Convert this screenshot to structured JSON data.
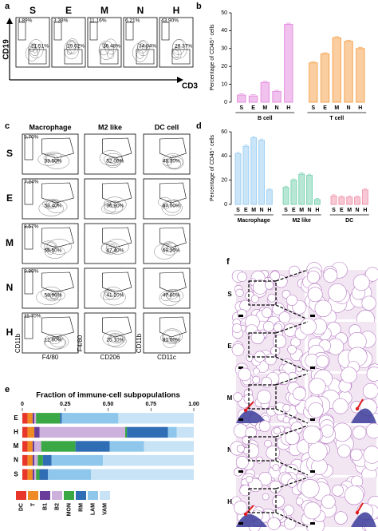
{
  "panel_labels": [
    "a",
    "b",
    "c",
    "d",
    "e",
    "f"
  ],
  "panel_a": {
    "samples": [
      "S",
      "E",
      "M",
      "N",
      "H"
    ],
    "gate_top": [
      "4.89%",
      "3.38%",
      "11.16%",
      "6.21%",
      "43.90%"
    ],
    "gate_bottom": [
      "21.51%",
      "29.02%",
      "36.48%",
      "34.04%",
      "29.37%"
    ],
    "y_axis": "CD19",
    "x_axis": "CD3"
  },
  "panel_c": {
    "columns": [
      "Macrophage",
      "M2 like",
      "DC cell"
    ],
    "samples": [
      "S",
      "E",
      "M",
      "N",
      "H"
    ],
    "macrophage_top": [
      "5.70%",
      "7.24%",
      "8.57%",
      "9.89%",
      "11.70%"
    ],
    "macrophage_bottom": [
      "33.50%",
      "53.40%",
      "55.50%",
      "58.90%",
      "12.60%"
    ],
    "m2_like": [
      "52.00%",
      "36.90%",
      "47.40%",
      "41.20%",
      "25.10%"
    ],
    "dc_cell": [
      "48.30%",
      "67.00%",
      "69.20%",
      "47.60%",
      "81.60%"
    ],
    "axis_labels": [
      {
        "y": "CD11b",
        "x": "F4/80"
      },
      {
        "y": "F4/80",
        "x": "CD206"
      },
      {
        "y": "CD11b",
        "x": "CD11c"
      }
    ]
  },
  "panel_f": {
    "samples": [
      "S",
      "E",
      "M",
      "N",
      "H"
    ]
  },
  "chart_data": [
    {
      "type": "bar",
      "ylabel": "Percentage of CD45⁺ cells",
      "categories": [
        "S",
        "E",
        "M",
        "N",
        "H"
      ],
      "series": [
        {
          "name": "B cell",
          "color": "#e58fe0",
          "values": [
            4,
            3.5,
            11,
            6,
            43.5
          ]
        },
        {
          "name": "T cell",
          "color": "#f6a653",
          "values": [
            22,
            27,
            36,
            34,
            30
          ]
        }
      ],
      "ylim": [
        0,
        50
      ],
      "yticks": [
        0,
        10,
        20,
        30,
        40,
        50
      ]
    },
    {
      "type": "bar",
      "ylabel": "Percentage of CD45⁺ cells",
      "categories": [
        "S",
        "E",
        "M",
        "N",
        "H"
      ],
      "series": [
        {
          "name": "Macrophage",
          "color": "#9fd0f2",
          "values": [
            42,
            48,
            55,
            53,
            12
          ]
        },
        {
          "name": "M2 like",
          "color": "#7fd3b4",
          "values": [
            14,
            20,
            25,
            24,
            4
          ]
        },
        {
          "name": "DC",
          "color": "#f29bb0",
          "values": [
            7,
            6,
            6,
            6,
            12
          ]
        }
      ],
      "ylim": [
        0,
        60
      ],
      "yticks": [
        0,
        20,
        40,
        60
      ]
    },
    {
      "type": "stacked_barh",
      "title": "Fraction of immune-cell subpopulations",
      "categories": [
        "E",
        "H",
        "M",
        "N",
        "S"
      ],
      "series": [
        {
          "name": "DC",
          "color": "#e8362a",
          "values": [
            0.03,
            0.03,
            0.03,
            0.03,
            0.03
          ]
        },
        {
          "name": "T",
          "color": "#f08a24",
          "values": [
            0.03,
            0.04,
            0.03,
            0.03,
            0.03
          ]
        },
        {
          "name": "B1",
          "color": "#6a3d9a",
          "values": [
            0.01,
            0.03,
            0.01,
            0.01,
            0.01
          ]
        },
        {
          "name": "B2",
          "color": "#cdb0dc",
          "values": [
            0.01,
            0.5,
            0.04,
            0.02,
            0.01
          ]
        },
        {
          "name": "MON",
          "color": "#3aa845",
          "values": [
            0.14,
            0.01,
            0.2,
            0.03,
            0.02
          ]
        },
        {
          "name": "RM",
          "color": "#2f6db5",
          "values": [
            0.01,
            0.24,
            0.2,
            0.05,
            0.05
          ]
        },
        {
          "name": "LAM",
          "color": "#8fc7ec",
          "values": [
            0.33,
            0.05,
            0.2,
            0.3,
            0.25
          ]
        },
        {
          "name": "VAM",
          "color": "#c7e3f5",
          "values": [
            0.44,
            0.1,
            0.29,
            0.53,
            0.6
          ]
        }
      ],
      "xlim": [
        0,
        1
      ],
      "xticks": [
        0,
        0.25,
        {
          "value": 0.5,
          "label": "0.50"
        },
        0.75,
        {
          "value": 1,
          "label": "1.00"
        }
      ]
    }
  ]
}
